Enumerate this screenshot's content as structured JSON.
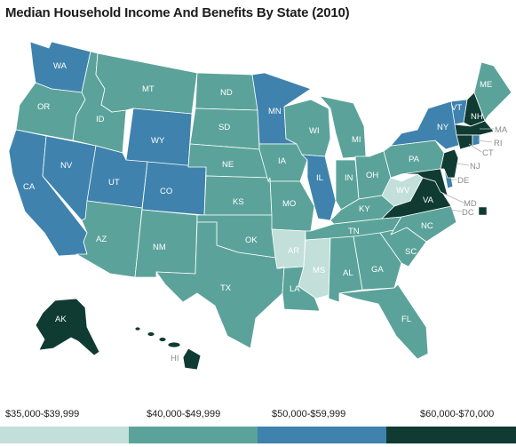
{
  "title": "Median Household Income And Benefits By State (2010)",
  "colors": {
    "bin1": "#c2dfda",
    "bin2": "#5ba39a",
    "bin3": "#3f82ad",
    "bin4": "#0f3b32",
    "border": "#ffffff"
  },
  "legend": [
    {
      "label": "$35,000-$39,999",
      "color": "#c2dfda"
    },
    {
      "label": "$40,000-$49,999",
      "color": "#5ba39a"
    },
    {
      "label": "$50,000-$59,999",
      "color": "#3f82ad"
    },
    {
      "label": "$60,000-$70,000",
      "color": "#0f3b32"
    }
  ],
  "states": {
    "WA": "$50,000-$59,999",
    "OR": "$40,000-$49,999",
    "CA": "$50,000-$59,999",
    "NV": "$50,000-$59,999",
    "ID": "$40,000-$49,999",
    "MT": "$40,000-$49,999",
    "WY": "$50,000-$59,999",
    "UT": "$50,000-$59,999",
    "CO": "$50,000-$59,999",
    "AZ": "$40,000-$49,999",
    "NM": "$40,000-$49,999",
    "ND": "$40,000-$49,999",
    "SD": "$40,000-$49,999",
    "NE": "$40,000-$49,999",
    "KS": "$40,000-$49,999",
    "OK": "$40,000-$49,999",
    "TX": "$40,000-$49,999",
    "MN": "$50,000-$59,999",
    "IA": "$40,000-$49,999",
    "MO": "$40,000-$49,999",
    "AR": "$35,000-$39,999",
    "LA": "$40,000-$49,999",
    "WI": "$40,000-$49,999",
    "IL": "$50,000-$59,999",
    "MI": "$40,000-$49,999",
    "IN": "$40,000-$49,999",
    "OH": "$40,000-$49,999",
    "KY": "$40,000-$49,999",
    "TN": "$40,000-$49,999",
    "MS": "$35,000-$39,999",
    "AL": "$40,000-$49,999",
    "GA": "$40,000-$49,999",
    "FL": "$40,000-$49,999",
    "SC": "$40,000-$49,999",
    "NC": "$40,000-$49,999",
    "VA": "$60,000-$70,000",
    "WV": "$35,000-$39,999",
    "PA": "$40,000-$49,999",
    "NY": "$50,000-$59,999",
    "VT": "$50,000-$59,999",
    "NH": "$60,000-$70,000",
    "ME": "$40,000-$49,999",
    "MA": "$60,000-$70,000",
    "RI": "$50,000-$59,999",
    "CT": "$60,000-$70,000",
    "NJ": "$60,000-$70,000",
    "DE": "$50,000-$59,999",
    "MD": "$60,000-$70,000",
    "DC": "$60,000-$70,000",
    "AK": "$60,000-$70,000",
    "HI": "$60,000-$70,000"
  }
}
